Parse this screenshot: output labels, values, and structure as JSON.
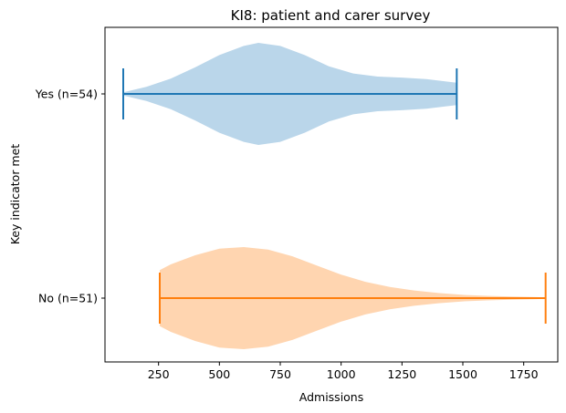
{
  "chart_data": {
    "type": "violin",
    "orientation": "horizontal",
    "title": "KI8: patient and carer survey",
    "xlabel": "Admissions",
    "ylabel": "Key indicator met",
    "xlim": [
      30,
      1890
    ],
    "xticks": [
      250,
      500,
      750,
      1000,
      1250,
      1500,
      1750
    ],
    "categories": [
      "Yes (n=54)",
      "No (n=51)"
    ],
    "series": [
      {
        "category": "Yes (n=54)",
        "color": "#1f77b4",
        "fill_color": "#bad6ea",
        "min": 105,
        "max": 1475,
        "density": [
          [
            105,
            0.03
          ],
          [
            200,
            0.14
          ],
          [
            300,
            0.3
          ],
          [
            400,
            0.52
          ],
          [
            500,
            0.76
          ],
          [
            600,
            0.94
          ],
          [
            660,
            1.0
          ],
          [
            750,
            0.94
          ],
          [
            850,
            0.76
          ],
          [
            950,
            0.54
          ],
          [
            1050,
            0.4
          ],
          [
            1150,
            0.34
          ],
          [
            1250,
            0.32
          ],
          [
            1350,
            0.29
          ],
          [
            1420,
            0.25
          ],
          [
            1475,
            0.22
          ]
        ]
      },
      {
        "category": "No (n=51)",
        "color": "#ff7f0e",
        "fill_color": "#ffd5b0",
        "min": 255,
        "max": 1840,
        "density": [
          [
            255,
            0.55
          ],
          [
            300,
            0.66
          ],
          [
            400,
            0.84
          ],
          [
            500,
            0.97
          ],
          [
            600,
            1.0
          ],
          [
            700,
            0.95
          ],
          [
            800,
            0.82
          ],
          [
            900,
            0.64
          ],
          [
            1000,
            0.46
          ],
          [
            1100,
            0.32
          ],
          [
            1200,
            0.22
          ],
          [
            1300,
            0.15
          ],
          [
            1400,
            0.1
          ],
          [
            1500,
            0.065
          ],
          [
            1600,
            0.045
          ],
          [
            1700,
            0.03
          ],
          [
            1800,
            0.02
          ],
          [
            1840,
            0.015
          ]
        ]
      }
    ]
  }
}
